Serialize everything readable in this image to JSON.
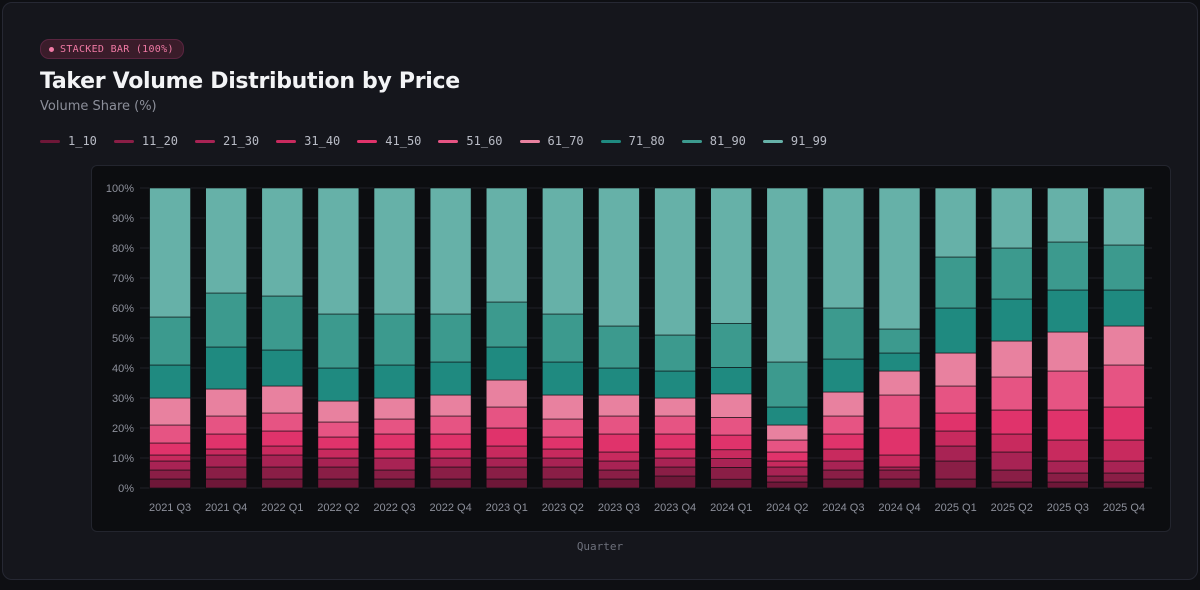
{
  "header": {
    "badge_label": "STACKED BAR (100%)",
    "title": "Taker Volume Distribution by Price",
    "subtitle": "Volume Share (%)"
  },
  "colors": {
    "1_10": "#6e1738",
    "11_20": "#8a1e46",
    "21_30": "#a82354",
    "31_40": "#c82a5e",
    "41_50": "#e0336b",
    "51_60": "#e65483",
    "61_70": "#e8819f",
    "71_80": "#1f8a80",
    "81_90": "#3c9a8e",
    "91_99": "#66b1a8"
  },
  "chart_data": {
    "type": "bar",
    "stacked": true,
    "normalized": true,
    "xlabel": "Quarter",
    "ylabel": "",
    "ylim": [
      0,
      100
    ],
    "y_ticks": [
      "0%",
      "10%",
      "20%",
      "30%",
      "40%",
      "50%",
      "60%",
      "70%",
      "80%",
      "90%",
      "100%"
    ],
    "categories": [
      "2021 Q3",
      "2021 Q4",
      "2022 Q1",
      "2022 Q2",
      "2022 Q3",
      "2022 Q4",
      "2023 Q1",
      "2023 Q2",
      "2023 Q3",
      "2023 Q4",
      "2024 Q1",
      "2024 Q2",
      "2024 Q3",
      "2024 Q4",
      "2025 Q1",
      "2025 Q2",
      "2025 Q3",
      "2025 Q4"
    ],
    "series": [
      {
        "name": "1_10",
        "values": [
          3,
          3,
          3,
          3,
          3,
          3,
          3,
          3,
          3,
          4,
          3,
          2,
          3,
          3,
          3,
          2,
          2,
          2
        ]
      },
      {
        "name": "11_20",
        "values": [
          3,
          4,
          4,
          4,
          3,
          4,
          4,
          4,
          3,
          3,
          4,
          2,
          3,
          3,
          6,
          4,
          3,
          3
        ]
      },
      {
        "name": "21_30",
        "values": [
          3,
          4,
          4,
          3,
          4,
          3,
          3,
          3,
          3,
          3,
          3,
          3,
          3,
          1,
          5,
          6,
          4,
          4
        ]
      },
      {
        "name": "31_40",
        "values": [
          2,
          2,
          3,
          3,
          3,
          3,
          4,
          3,
          3,
          3,
          3,
          2,
          4,
          4,
          5,
          6,
          7,
          7
        ]
      },
      {
        "name": "41_50",
        "values": [
          4,
          5,
          5,
          4,
          5,
          5,
          6,
          4,
          6,
          5,
          5,
          3,
          5,
          9,
          6,
          8,
          10,
          11
        ]
      },
      {
        "name": "51_60",
        "values": [
          6,
          6,
          6,
          5,
          5,
          6,
          7,
          6,
          6,
          6,
          6,
          4,
          6,
          11,
          9,
          11,
          13,
          14
        ]
      },
      {
        "name": "61_70",
        "values": [
          9,
          9,
          9,
          7,
          7,
          7,
          9,
          8,
          7,
          6,
          8,
          5,
          8,
          8,
          11,
          12,
          13,
          13
        ]
      },
      {
        "name": "71_80",
        "values": [
          11,
          14,
          12,
          11,
          11,
          11,
          11,
          11,
          9,
          9,
          9,
          6,
          11,
          6,
          15,
          14,
          14,
          12
        ]
      },
      {
        "name": "81_90",
        "values": [
          16,
          18,
          18,
          18,
          17,
          16,
          15,
          16,
          14,
          12,
          15,
          15,
          17,
          8,
          17,
          17,
          16,
          15
        ]
      },
      {
        "name": "91_99",
        "values": [
          43,
          35,
          36,
          42,
          42,
          42,
          38,
          42,
          46,
          49,
          46,
          58,
          40,
          47,
          23,
          20,
          18,
          19
        ]
      }
    ]
  }
}
